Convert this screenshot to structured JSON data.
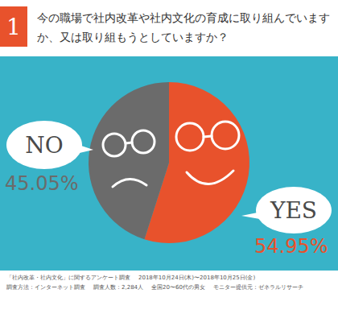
{
  "chart_data": {
    "type": "pie",
    "number": "1",
    "title": "今の職場で社内改革や社内文化の育成に取り組んでいますか、又は取り組もうとしていますか？",
    "categories": [
      "YES",
      "NO"
    ],
    "values": [
      54.95,
      45.05
    ],
    "value_labels": [
      "54.95%",
      "45.05%"
    ],
    "colors": [
      "#e8522c",
      "#6b6b6b"
    ],
    "data_labels": true,
    "notes": [
      "「社内改革・社内文化」に関するアンケート調査",
      "2018年10月24日(木)〜2018年10月25日(金)",
      "調査方法：インターネット調査",
      "調査人数：2,284人",
      "全国20〜60代の男女",
      "モニター提供元：ゼネラルリサーチ"
    ]
  }
}
